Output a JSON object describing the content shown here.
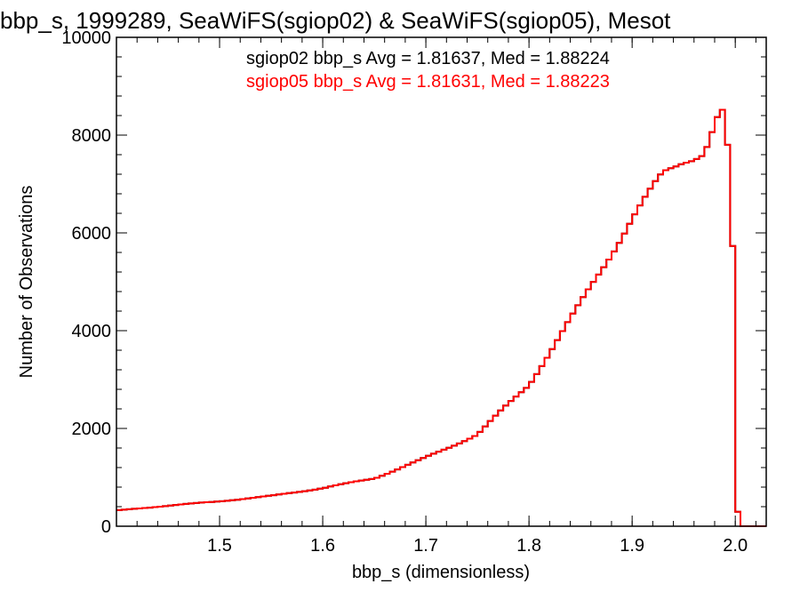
{
  "chart_data": {
    "type": "histogram",
    "title": "bbp_s, 1999289, SeaWiFS(sgiop02) & SeaWiFS(sgiop05), Mesot",
    "xlabel": "bbp_s (dimensionless)",
    "ylabel": "Number of Observations",
    "xlim": [
      1.4,
      2.03
    ],
    "ylim": [
      0,
      10000
    ],
    "xticks": [
      1.5,
      1.6,
      1.7,
      1.8,
      1.9,
      2.0
    ],
    "xtick_labels": [
      "1.5",
      "1.6",
      "1.7",
      "1.8",
      "1.9",
      "2.0"
    ],
    "yticks": [
      0,
      2000,
      4000,
      6000,
      8000,
      10000
    ],
    "ytick_labels": [
      "0",
      "2000",
      "4000",
      "6000",
      "8000",
      "10000"
    ],
    "grid": false,
    "bin_width": 0.005,
    "annotations": [
      {
        "text": "sgiop02 bbp_s Avg = 1.81637, Med = 1.88224",
        "color": "#000000"
      },
      {
        "text": "sgiop05 bbp_s Avg = 1.81631, Med = 1.88223",
        "color": "#ff0000"
      }
    ],
    "series": [
      {
        "color": "#000000",
        "style": "step",
        "x": [
          1.4,
          1.45,
          1.5,
          1.55,
          1.6,
          1.65,
          1.7,
          1.75,
          1.8,
          1.85,
          1.88,
          1.9,
          1.93,
          1.95,
          1.97,
          1.985,
          1.99,
          1.995,
          1.998,
          2.0,
          2.003,
          2.005,
          2.03
        ],
        "y": [
          320,
          420,
          510,
          620,
          780,
          980,
          1400,
          1880,
          2900,
          4550,
          5600,
          6300,
          7200,
          7500,
          7650,
          8450,
          8420,
          7000,
          5400,
          1750,
          0,
          0,
          0
        ]
      },
      {
        "color": "#ff0000",
        "style": "step",
        "x": [
          1.4,
          1.45,
          1.5,
          1.55,
          1.6,
          1.65,
          1.7,
          1.75,
          1.8,
          1.85,
          1.88,
          1.9,
          1.93,
          1.95,
          1.97,
          1.985,
          1.99,
          1.995,
          1.998,
          2.0,
          2.003,
          2.005,
          2.03
        ],
        "y": [
          320,
          420,
          510,
          620,
          780,
          980,
          1400,
          1880,
          2900,
          4550,
          5600,
          6300,
          7200,
          7500,
          7650,
          8450,
          8420,
          7000,
          5400,
          1750,
          0,
          0,
          0
        ]
      }
    ]
  }
}
